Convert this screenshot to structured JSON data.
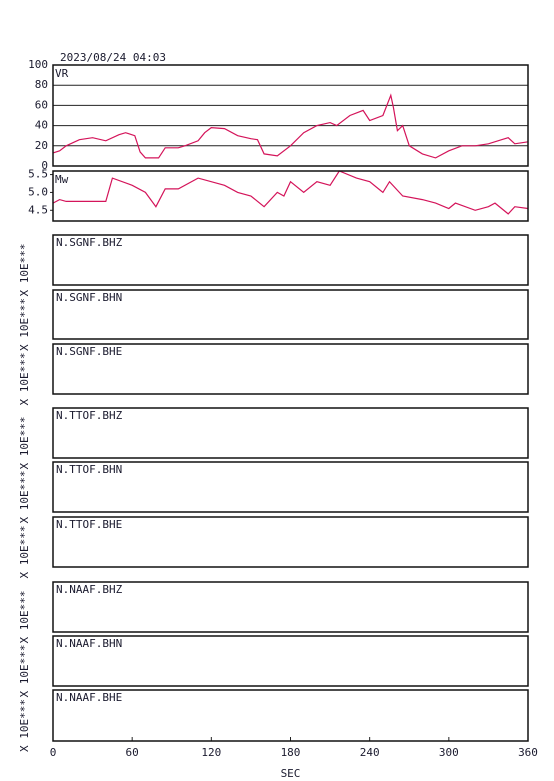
{
  "chart_data": [
    {
      "type": "line",
      "title": "2023/08/24 04:03",
      "y_label": "VR",
      "color": "#d4145a",
      "x": [
        0,
        5,
        10,
        20,
        30,
        40,
        50,
        55,
        62,
        66,
        70,
        80,
        85,
        95,
        100,
        110,
        115,
        120,
        130,
        140,
        150,
        155,
        160,
        170,
        180,
        190,
        200,
        210,
        215,
        225,
        235,
        240,
        250,
        256,
        258,
        261,
        265,
        270,
        280,
        290,
        300,
        310,
        320,
        330,
        340,
        345,
        350,
        360
      ],
      "values": [
        13,
        15,
        20,
        26,
        28,
        25,
        31,
        33,
        30,
        14,
        8,
        8,
        18,
        18,
        20,
        25,
        33,
        38,
        37,
        30,
        27,
        26,
        12,
        10,
        20,
        33,
        40,
        43,
        40,
        50,
        55,
        45,
        50,
        70,
        58,
        35,
        40,
        20,
        12,
        8,
        15,
        20,
        20,
        22,
        26,
        28,
        22,
        24
      ],
      "xlim": [
        0,
        360
      ],
      "ylim": [
        0,
        100
      ],
      "yticks": [
        0,
        20,
        40,
        60,
        80,
        100
      ],
      "grid": true
    },
    {
      "type": "line",
      "y_label": "Mw",
      "color": "#d4145a",
      "x": [
        0,
        5,
        10,
        20,
        40,
        45,
        60,
        70,
        78,
        85,
        95,
        110,
        130,
        140,
        150,
        160,
        170,
        175,
        180,
        190,
        200,
        210,
        217,
        230,
        240,
        250,
        255,
        265,
        280,
        290,
        300,
        305,
        320,
        330,
        335,
        345,
        350,
        360
      ],
      "values": [
        4.7,
        4.8,
        4.75,
        4.75,
        4.75,
        5.4,
        5.2,
        5.0,
        4.6,
        5.1,
        5.1,
        5.4,
        5.2,
        5.0,
        4.9,
        4.6,
        5.0,
        4.9,
        5.3,
        5.0,
        5.3,
        5.2,
        5.6,
        5.4,
        5.3,
        5.0,
        5.3,
        4.9,
        4.8,
        4.7,
        4.55,
        4.7,
        4.5,
        4.6,
        4.7,
        4.4,
        4.6,
        4.55
      ],
      "xlim": [
        0,
        360
      ],
      "ylim": [
        4.2,
        5.6
      ],
      "yticks": [
        4.5,
        {
          "value": 5,
          "label": "5.0"
        },
        5.5
      ],
      "grid": false
    },
    {
      "type": "waveform",
      "station": "N.SGNF.BHZ",
      "y_label": "X 10E***"
    },
    {
      "type": "waveform",
      "station": "N.SGNF.BHN",
      "y_label": "X 10E***"
    },
    {
      "type": "waveform",
      "station": "N.SGNF.BHE",
      "y_label": "X 10E***"
    },
    {
      "type": "waveform",
      "station": "N.TTOF.BHZ",
      "y_label": "X 10E***"
    },
    {
      "type": "waveform",
      "station": "N.TTOF.BHN",
      "y_label": "X 10E***"
    },
    {
      "type": "waveform",
      "station": "N.TTOF.BHE",
      "y_label": "X 10E***"
    },
    {
      "type": "waveform",
      "station": "N.NAAF.BHZ",
      "y_label": "X 10E***"
    },
    {
      "type": "waveform",
      "station": "N.NAAF.BHN",
      "y_label": "X 10E***"
    },
    {
      "type": "waveform",
      "station": "N.NAAF.BHE",
      "y_label": "X 10E***",
      "xlim": [
        0,
        360
      ],
      "xticks": [
        0,
        60,
        120,
        180,
        240,
        300,
        360
      ],
      "x_label": "SEC"
    }
  ]
}
